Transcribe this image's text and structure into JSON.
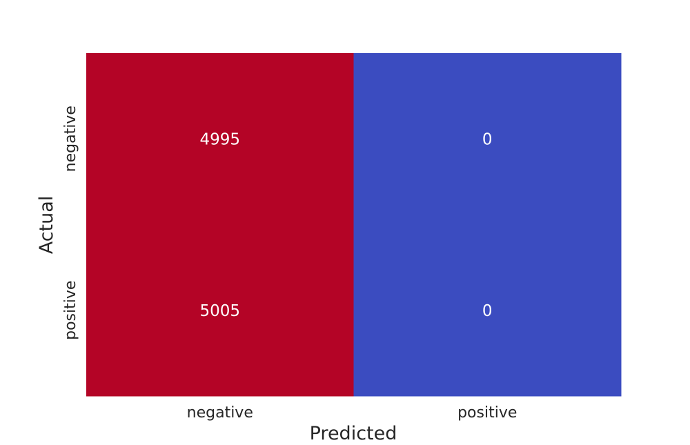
{
  "chart_data": {
    "type": "heatmap",
    "title": "",
    "xlabel": "Predicted",
    "ylabel": "Actual",
    "x_categories": [
      "negative",
      "positive"
    ],
    "y_categories": [
      "negative",
      "positive"
    ],
    "values": [
      [
        4995,
        0
      ],
      [
        5005,
        0
      ]
    ],
    "value_labels": [
      [
        "4995",
        "0"
      ],
      [
        "5005",
        "0"
      ]
    ],
    "colorscale": {
      "low": "#3b4cc0",
      "high": "#b40426"
    },
    "value_range": [
      0,
      5005
    ],
    "colorbar": false,
    "grid": false
  }
}
